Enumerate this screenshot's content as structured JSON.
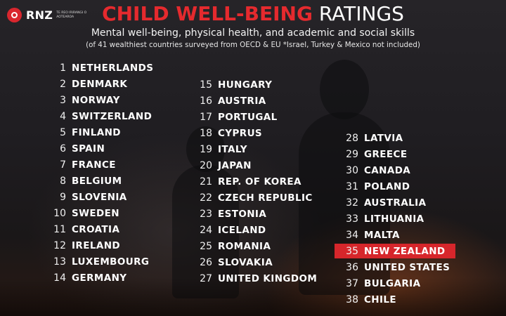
{
  "logo": {
    "text": "RNZ",
    "sub": "TE REO IRIRANGI O AOTEAROA"
  },
  "title": {
    "red": "CHILD WELL-BEING",
    "white": "RATINGS"
  },
  "subtitle": "Mental well-being, physical health, and academic and social skills",
  "note": "(of 41 wealthiest countries surveyed from OECD & EU  *Israel, Turkey & Mexico not included)",
  "highlight_color": "#d6262b",
  "columns": [
    [
      {
        "rank": "1",
        "country": "NETHERLANDS"
      },
      {
        "rank": "2",
        "country": "DENMARK"
      },
      {
        "rank": "3",
        "country": "NORWAY"
      },
      {
        "rank": "4",
        "country": "SWITZERLAND"
      },
      {
        "rank": "5",
        "country": "FINLAND"
      },
      {
        "rank": "6",
        "country": "SPAIN"
      },
      {
        "rank": "7",
        "country": "FRANCE"
      },
      {
        "rank": "8",
        "country": "BELGIUM"
      },
      {
        "rank": "9",
        "country": "SLOVENIA"
      },
      {
        "rank": "10",
        "country": "SWEDEN"
      },
      {
        "rank": "11",
        "country": "CROATIA"
      },
      {
        "rank": "12",
        "country": "IRELAND"
      },
      {
        "rank": "13",
        "country": "LUXEMBOURG"
      },
      {
        "rank": "14",
        "country": "GERMANY"
      }
    ],
    [
      {
        "rank": "15",
        "country": "HUNGARY"
      },
      {
        "rank": "16",
        "country": "AUSTRIA"
      },
      {
        "rank": "17",
        "country": "PORTUGAL"
      },
      {
        "rank": "18",
        "country": "CYPRUS"
      },
      {
        "rank": "19",
        "country": "ITALY"
      },
      {
        "rank": "20",
        "country": "JAPAN"
      },
      {
        "rank": "21",
        "country": "REP. OF KOREA"
      },
      {
        "rank": "22",
        "country": "CZECH REPUBLIC"
      },
      {
        "rank": "23",
        "country": "ESTONIA"
      },
      {
        "rank": "24",
        "country": "ICELAND"
      },
      {
        "rank": "25",
        "country": "ROMANIA"
      },
      {
        "rank": "26",
        "country": "SLOVAKIA"
      },
      {
        "rank": "27",
        "country": "UNITED KINGDOM"
      }
    ],
    [
      {
        "rank": "28",
        "country": "LATVIA"
      },
      {
        "rank": "29",
        "country": "GREECE"
      },
      {
        "rank": "30",
        "country": "CANADA"
      },
      {
        "rank": "31",
        "country": "POLAND"
      },
      {
        "rank": "32",
        "country": "AUSTRALIA"
      },
      {
        "rank": "33",
        "country": "LITHUANIA"
      },
      {
        "rank": "34",
        "country": "MALTA"
      },
      {
        "rank": "35",
        "country": "NEW ZEALAND",
        "highlight": true
      },
      {
        "rank": "36",
        "country": "UNITED STATES"
      },
      {
        "rank": "37",
        "country": "BULGARIA"
      },
      {
        "rank": "38",
        "country": "CHILE"
      }
    ]
  ]
}
